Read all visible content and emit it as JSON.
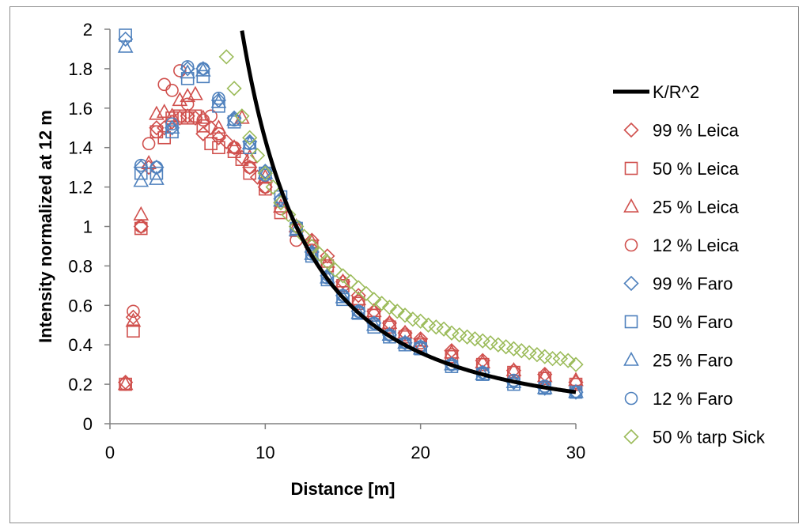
{
  "chart_data": {
    "type": "scatter",
    "title": "",
    "xlabel": "Distance [m]",
    "ylabel": "Intensity normalized at 12 m",
    "xlim": [
      0,
      30
    ],
    "ylim": [
      0,
      2
    ],
    "xticks": [
      0,
      10,
      20,
      30
    ],
    "yticks": [
      0,
      0.2,
      0.4,
      0.6,
      0.8,
      1,
      1.2,
      1.4,
      1.6,
      1.8,
      2
    ],
    "ytick_labels": [
      "0",
      "0.2",
      "0.4",
      "0.6",
      "0.8",
      "1",
      "1.2",
      "1.4",
      "1.6",
      "1.8",
      "2"
    ],
    "grid": false,
    "legend_position": "right",
    "colors": {
      "leica": "#d0504d",
      "faro": "#4f81bd",
      "sick": "#9bbb59",
      "curve": "#000000",
      "axis": "#808080"
    },
    "curve": {
      "name": "K/R^2",
      "K": 144,
      "x_start": 8.5,
      "x_end": 30
    },
    "series": [
      {
        "name": "99 % Leica",
        "marker": "diamond",
        "color": "#d0504d",
        "x": [
          1,
          1.5,
          2,
          2.5,
          3,
          3.5,
          4,
          4.5,
          5,
          5.5,
          6,
          6.5,
          7,
          7.5,
          8,
          8.5,
          9,
          9.5,
          10,
          11,
          12,
          13,
          14,
          15,
          16,
          17,
          18,
          19,
          20,
          22,
          24,
          26,
          28,
          30
        ],
        "y": [
          0.21,
          0.54,
          1.0,
          1.3,
          1.5,
          1.5,
          1.53,
          1.55,
          1.56,
          1.55,
          1.47,
          1.5,
          1.45,
          1.43,
          1.4,
          1.35,
          1.3,
          1.25,
          1.2,
          1.12,
          1.0,
          0.93,
          0.85,
          0.72,
          0.65,
          0.57,
          0.51,
          0.46,
          0.43,
          0.37,
          0.32,
          0.27,
          0.25,
          0.21
        ]
      },
      {
        "name": "50 % Leica",
        "marker": "square",
        "color": "#d0504d",
        "x": [
          1,
          1.5,
          2,
          3,
          3.5,
          4,
          4.5,
          5,
          5.5,
          6,
          6.5,
          7,
          8,
          8.5,
          9,
          10,
          11,
          12,
          13,
          14,
          15,
          16,
          17,
          18,
          19,
          20,
          22,
          24,
          26,
          28,
          30
        ],
        "y": [
          0.2,
          0.47,
          0.99,
          1.48,
          1.45,
          1.55,
          1.56,
          1.55,
          1.56,
          1.51,
          1.42,
          1.4,
          1.38,
          1.34,
          1.27,
          1.19,
          1.07,
          0.98,
          0.9,
          0.8,
          0.7,
          0.61,
          0.55,
          0.49,
          0.44,
          0.4,
          0.34,
          0.3,
          0.26,
          0.23,
          0.2
        ]
      },
      {
        "name": "25 % Leica",
        "marker": "triangle",
        "color": "#d0504d",
        "x": [
          1,
          1.5,
          2,
          2.5,
          3,
          3.5,
          4,
          4.5,
          5,
          5.5,
          6,
          7,
          8,
          8.5,
          9,
          10,
          11,
          12,
          13,
          14,
          15,
          16,
          17,
          18,
          19,
          20,
          22,
          24,
          26,
          28,
          30
        ],
        "y": [
          0.2,
          0.52,
          1.06,
          1.32,
          1.57,
          1.58,
          1.56,
          1.64,
          1.66,
          1.67,
          1.55,
          1.5,
          1.4,
          1.55,
          1.35,
          1.25,
          1.1,
          1.0,
          0.92,
          0.82,
          0.72,
          0.63,
          0.57,
          0.51,
          0.46,
          0.42,
          0.36,
          0.31,
          0.27,
          0.24,
          0.22
        ]
      },
      {
        "name": "12 % Leica",
        "marker": "circle",
        "color": "#d0504d",
        "x": [
          1,
          1.5,
          2,
          2.5,
          3,
          3.5,
          4,
          4.5,
          5,
          6,
          6.5,
          7,
          8,
          9,
          10,
          11,
          12,
          13,
          14,
          15,
          16,
          17,
          18,
          19,
          20,
          22,
          24,
          26,
          28,
          30
        ],
        "y": [
          0.2,
          0.57,
          1.0,
          1.42,
          1.48,
          1.72,
          1.69,
          1.79,
          1.62,
          1.54,
          1.56,
          1.47,
          1.4,
          1.3,
          1.2,
          1.09,
          0.93,
          0.88,
          0.79,
          0.7,
          0.62,
          0.55,
          0.5,
          0.45,
          0.41,
          0.35,
          0.3,
          0.26,
          0.23,
          0.2
        ]
      },
      {
        "name": "99 % Faro",
        "marker": "diamond",
        "color": "#4f81bd",
        "x": [
          1,
          2,
          3,
          4,
          5,
          6,
          7,
          8,
          9,
          10,
          11,
          12,
          13,
          14,
          15,
          16,
          17,
          18,
          19,
          20,
          22,
          24,
          26,
          28,
          30
        ],
        "y": [
          1.95,
          1.3,
          1.3,
          1.5,
          1.8,
          1.8,
          1.64,
          1.55,
          1.43,
          1.28,
          1.14,
          1.0,
          0.87,
          0.75,
          0.65,
          0.57,
          0.51,
          0.45,
          0.41,
          0.39,
          0.3,
          0.26,
          0.21,
          0.18,
          0.16
        ]
      },
      {
        "name": "50 % Faro",
        "marker": "square",
        "color": "#4f81bd",
        "x": [
          1,
          2,
          3,
          4,
          5,
          6,
          7,
          8,
          9,
          10,
          11,
          12,
          13,
          14,
          15,
          16,
          17,
          18,
          19,
          20,
          22,
          24,
          26,
          28,
          30
        ],
        "y": [
          1.97,
          1.27,
          1.27,
          1.48,
          1.75,
          1.76,
          1.61,
          1.53,
          1.4,
          1.27,
          1.15,
          0.99,
          0.85,
          0.73,
          0.63,
          0.56,
          0.49,
          0.44,
          0.4,
          0.38,
          0.29,
          0.25,
          0.2,
          0.18,
          0.16
        ]
      },
      {
        "name": "25 % Faro",
        "marker": "triangle",
        "color": "#4f81bd",
        "x": [
          1,
          2,
          3,
          4,
          5,
          6,
          7,
          8,
          9,
          10,
          11,
          12,
          13,
          14,
          15,
          16,
          17,
          18,
          19,
          20,
          22,
          24,
          26,
          28,
          30
        ],
        "y": [
          1.91,
          1.23,
          1.24,
          1.5,
          1.78,
          1.79,
          1.63,
          1.54,
          1.42,
          1.27,
          1.13,
          0.98,
          0.86,
          0.74,
          0.64,
          0.56,
          0.5,
          0.45,
          0.41,
          0.38,
          0.3,
          0.25,
          0.21,
          0.18,
          0.16
        ]
      },
      {
        "name": "12 % Faro",
        "marker": "circle",
        "color": "#4f81bd",
        "x": [
          2,
          3,
          4,
          5,
          6,
          7,
          8,
          9,
          10,
          11,
          12,
          13,
          14,
          15,
          16,
          17,
          18,
          19,
          20,
          22,
          24,
          26,
          28,
          30
        ],
        "y": [
          1.31,
          1.3,
          1.52,
          1.81,
          1.8,
          1.65,
          1.54,
          1.42,
          1.26,
          1.13,
          1.0,
          0.86,
          0.74,
          0.65,
          0.57,
          0.51,
          0.45,
          0.41,
          0.39,
          0.3,
          0.26,
          0.22,
          0.19,
          0.16
        ]
      },
      {
        "name": "50 % tarp Sick",
        "marker": "diamond",
        "color": "#9bbb59",
        "x": [
          7.5,
          8,
          8.5,
          9,
          9.5,
          10,
          10.5,
          11,
          11.5,
          12,
          12.5,
          13,
          13.5,
          14,
          14.5,
          15,
          15.5,
          16,
          16.5,
          17,
          17.5,
          18,
          18.5,
          19,
          19.5,
          20,
          20.5,
          21,
          21.5,
          22,
          22.5,
          23,
          23.5,
          24,
          24.5,
          25,
          25.5,
          26,
          26.5,
          27,
          27.5,
          28,
          28.5,
          29,
          29.5,
          30
        ],
        "y": [
          1.86,
          1.7,
          1.56,
          1.45,
          1.36,
          1.27,
          1.2,
          1.12,
          1.06,
          1.0,
          0.95,
          0.9,
          0.86,
          0.82,
          0.78,
          0.75,
          0.72,
          0.69,
          0.66,
          0.63,
          0.61,
          0.59,
          0.57,
          0.55,
          0.53,
          0.52,
          0.5,
          0.49,
          0.48,
          0.46,
          0.45,
          0.44,
          0.43,
          0.42,
          0.41,
          0.4,
          0.39,
          0.38,
          0.37,
          0.36,
          0.35,
          0.34,
          0.33,
          0.33,
          0.32,
          0.3
        ]
      }
    ]
  }
}
